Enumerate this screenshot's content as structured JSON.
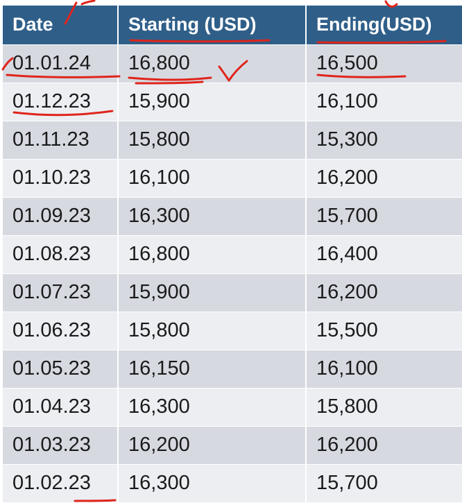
{
  "table": {
    "headers": [
      "Date",
      "Starting (USD)",
      "Ending(USD)"
    ],
    "rows": [
      [
        "01.01.24",
        "16,800",
        "16,500"
      ],
      [
        "01.12.23",
        "15,900",
        "16,100"
      ],
      [
        "01.11.23",
        "15,800",
        "15,300"
      ],
      [
        "01.10.23",
        "16,100",
        "16,200"
      ],
      [
        "01.09.23",
        "16,300",
        "15,700"
      ],
      [
        "01.08.23",
        "16,800",
        "16,400"
      ],
      [
        "01.07.23",
        "15,900",
        "16,200"
      ],
      [
        "01.06.23",
        "15,800",
        "15,500"
      ],
      [
        "01.05.23",
        "16,150",
        "16,100"
      ],
      [
        "01.04.23",
        "16,300",
        "15,800"
      ],
      [
        "01.03.23",
        "16,200",
        "16,200"
      ],
      [
        "01.02.23",
        "16,300",
        "15,700"
      ]
    ]
  },
  "colors": {
    "header_bg": "#2f5f89",
    "row_dark": "#d6d9e0",
    "row_light": "#eceef2",
    "annotation_ink": "#e0241b"
  }
}
